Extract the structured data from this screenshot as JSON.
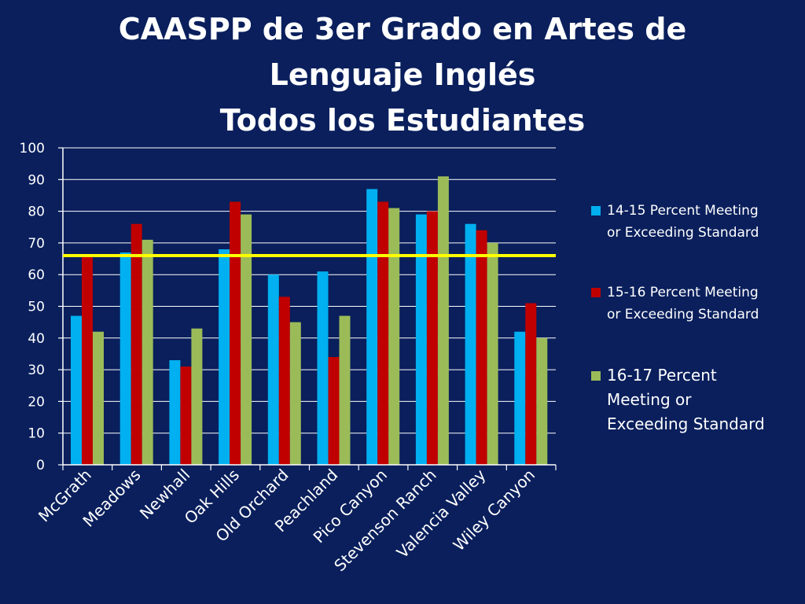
{
  "title": {
    "line1": "CAASPP de 3er Grado en Artes de",
    "line2": "Lenguaje Inglés",
    "line3": "Todos los Estudiantes"
  },
  "chart_data": {
    "type": "bar",
    "categories": [
      "McGrath",
      "Meadows",
      "Newhall",
      "Oak Hills",
      "Old Orchard",
      "Peachland",
      "Pico Canyon",
      "Stevenson Ranch",
      "Valencia Valley",
      "Wiley Canyon"
    ],
    "series": [
      {
        "name": "14-15 Percent Meeting or Exceeding Standard",
        "legend_lines": [
          "14-15 Percent Meeting",
          "or Exceeding Standard"
        ],
        "color": "#00b0f0",
        "values": [
          47,
          67,
          33,
          68,
          60,
          61,
          87,
          79,
          76,
          42
        ]
      },
      {
        "name": "15-16 Percent Meeting or Exceeding Standard",
        "legend_lines": [
          "15-16 Percent Meeting",
          "or Exceeding Standard"
        ],
        "color": "#c00000",
        "values": [
          66,
          76,
          31,
          83,
          53,
          34,
          83,
          80,
          74,
          51
        ]
      },
      {
        "name": "16-17  Percent Meeting or Exceeding Standard",
        "legend_lines": [
          "16-17  Percent",
          "Meeting or",
          "Exceeding Standard"
        ],
        "color": "#9bbb59",
        "values": [
          42,
          71,
          43,
          79,
          45,
          47,
          81,
          91,
          70,
          40
        ]
      }
    ],
    "ylim": [
      0,
      100
    ],
    "yticks": [
      0,
      10,
      20,
      30,
      40,
      50,
      60,
      70,
      80,
      90,
      100
    ],
    "reference_line": {
      "value": 66,
      "color": "#ffff00"
    },
    "grid": true,
    "legend": "right",
    "gridline_color": "#ffffff",
    "text_color": "#ffffff"
  }
}
